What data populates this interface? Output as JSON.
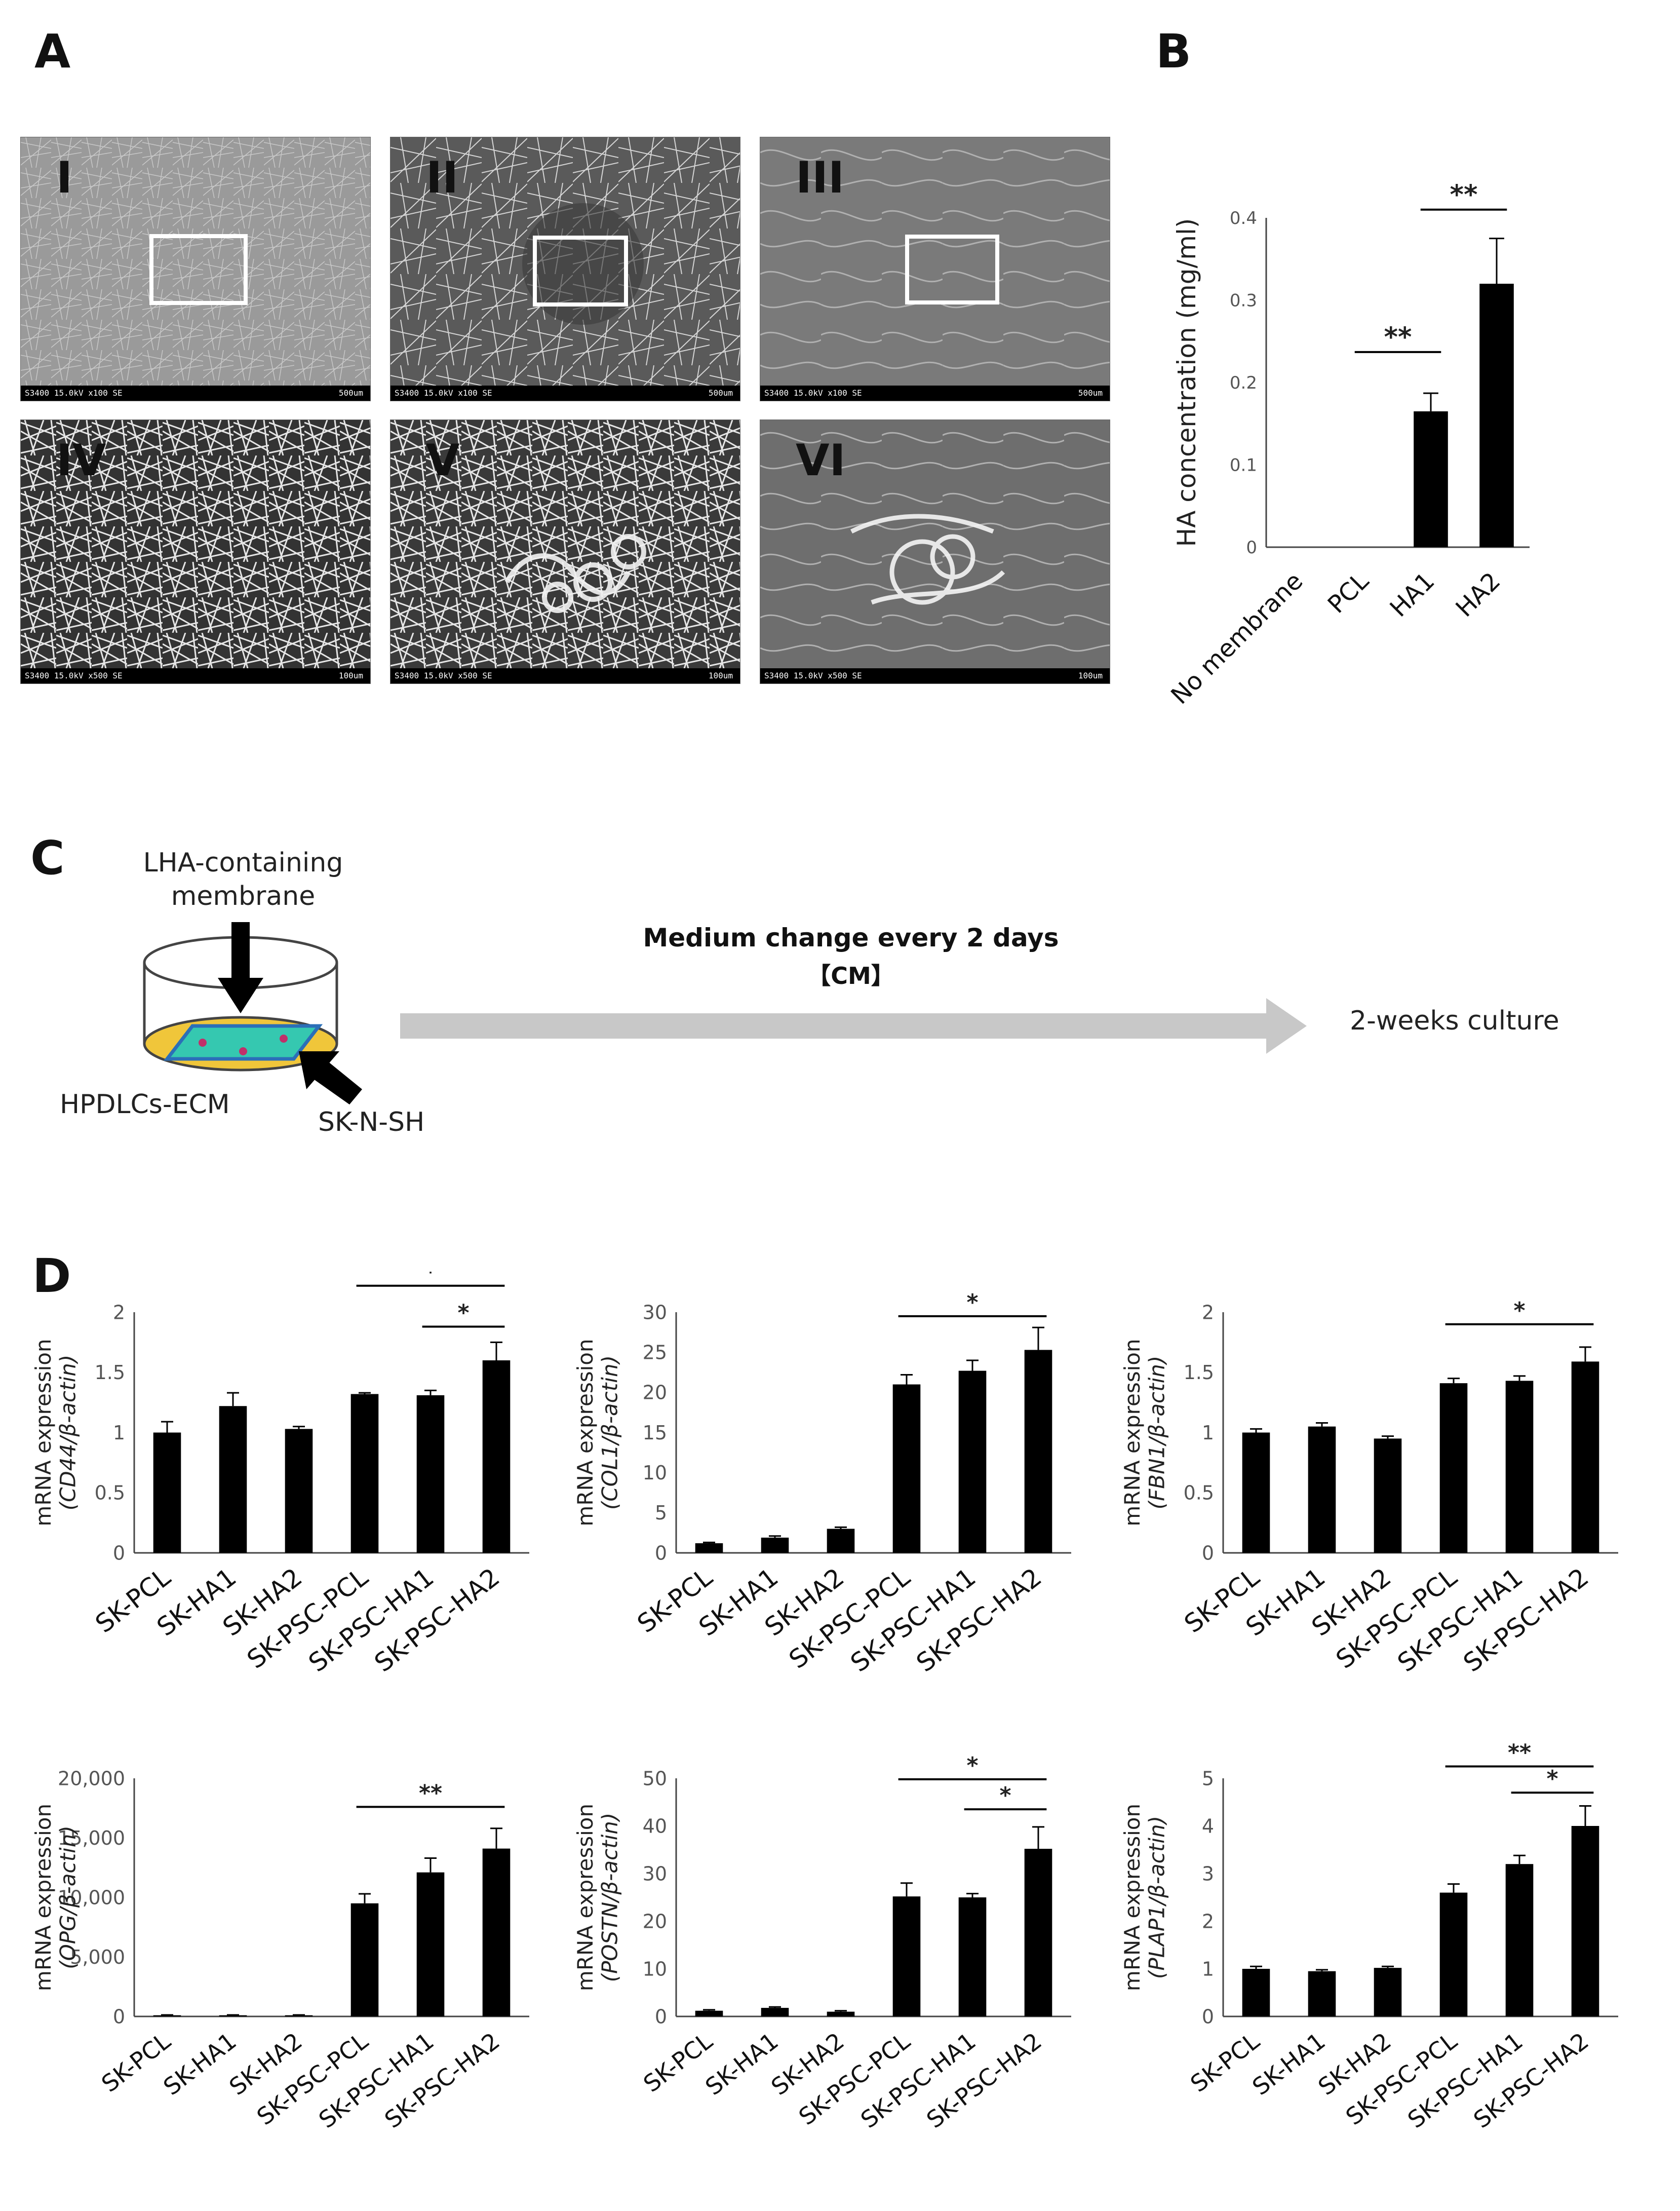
{
  "panels": {
    "A": {
      "letter": "A",
      "images": [
        {
          "label": "I",
          "scale_left": "S3400 15.0kV x100 SE",
          "scale_right": "500um"
        },
        {
          "label": "II",
          "scale_left": "S3400 15.0kV x100 SE",
          "scale_right": "500um"
        },
        {
          "label": "III",
          "scale_left": "S3400 15.0kV x100 SE",
          "scale_right": "500um"
        },
        {
          "label": "IV",
          "scale_left": "S3400 15.0kV x500 SE",
          "scale_right": "100um"
        },
        {
          "label": "V",
          "scale_left": "S3400 15.0kV x500 SE",
          "scale_right": "100um"
        },
        {
          "label": "VI",
          "scale_left": "S3400 15.0kV x500 SE",
          "scale_right": "100um"
        }
      ]
    },
    "B": {
      "letter": "B"
    },
    "C": {
      "letter": "C",
      "membrane_label_1": "LHA-containing",
      "membrane_label_2": "membrane",
      "ecm_label": "HPDLCs-ECM",
      "cell_label": "SK-N-SH",
      "medium_label": "Medium change every 2 days",
      "cm_label": "【CM】",
      "culture_label": "2-weeks culture",
      "colors": {
        "dish_fill": "#f0c63a",
        "membrane_fill": "#35c8b0",
        "membrane_edge": "#2b6fb8",
        "cell_dot": "#c0306a",
        "arrow": "#c8c8c8"
      }
    },
    "D": {
      "letter": "D"
    }
  },
  "chart_data": [
    {
      "id": "B",
      "type": "bar",
      "categories": [
        "No membrane",
        "PCL",
        "HA1",
        "HA2"
      ],
      "values": [
        0,
        0,
        0.165,
        0.32
      ],
      "errors": [
        0,
        0,
        0.022,
        0.055
      ],
      "ylabel": "HA concentration (mg/ml)",
      "ylabel_italic": "",
      "ylim": [
        0,
        0.4
      ],
      "yticks": [
        "0",
        "0.1",
        "0.2",
        "0.3",
        "0.4"
      ],
      "significance": [
        {
          "from": 1,
          "to": 2,
          "label": "**",
          "y": 0.237
        },
        {
          "from": 2,
          "to": 3,
          "label": "**",
          "y": 0.41
        }
      ]
    },
    {
      "id": "D1",
      "type": "bar",
      "categories": [
        "SK-PCL",
        "SK-HA1",
        "SK-HA2",
        "SK-PSC-PCL",
        "SK-PSC-HA1",
        "SK-PSC-HA2"
      ],
      "values": [
        1.0,
        1.22,
        1.03,
        1.32,
        1.31,
        1.6
      ],
      "errors": [
        0.09,
        0.11,
        0.02,
        0.01,
        0.04,
        0.15
      ],
      "ylabel": "mRNA expression",
      "ylabel_italic": "(CD44/β-actin)",
      "ylim": [
        0,
        2
      ],
      "yticks": [
        "0",
        "0.5",
        "1",
        "1.5",
        "2"
      ],
      "significance": [
        {
          "from": 3,
          "to": 5,
          "label": "*",
          "y": 2.22
        },
        {
          "from": 4,
          "to": 5,
          "label": "*",
          "y": 1.88
        }
      ]
    },
    {
      "id": "D2",
      "type": "bar",
      "categories": [
        "SK-PCL",
        "SK-HA1",
        "SK-HA2",
        "SK-PSC-PCL",
        "SK-PSC-HA1",
        "SK-PSC-HA2"
      ],
      "values": [
        1.2,
        1.9,
        3.0,
        21.0,
        22.7,
        25.3
      ],
      "errors": [
        0.1,
        0.2,
        0.2,
        1.2,
        1.3,
        2.8
      ],
      "ylabel": "mRNA expression",
      "ylabel_italic": "(COL1/β-actin)",
      "ylim": [
        0,
        30
      ],
      "yticks": [
        "0",
        "5",
        "10",
        "15",
        "20",
        "25",
        "30"
      ],
      "significance": [
        {
          "from": 3,
          "to": 5,
          "label": "*",
          "y": 29.5
        }
      ]
    },
    {
      "id": "D3",
      "type": "bar",
      "categories": [
        "SK-PCL",
        "SK-HA1",
        "SK-HA2",
        "SK-PSC-PCL",
        "SK-PSC-HA1",
        "SK-PSC-HA2"
      ],
      "values": [
        1.0,
        1.05,
        0.95,
        1.41,
        1.43,
        1.59
      ],
      "errors": [
        0.03,
        0.03,
        0.02,
        0.04,
        0.04,
        0.12
      ],
      "ylabel": "mRNA expression",
      "ylabel_italic": "(FBN1/β-actin)",
      "ylim": [
        0,
        2
      ],
      "yticks": [
        "0",
        "0.5",
        "1",
        "1.5",
        "2"
      ],
      "significance": [
        {
          "from": 3,
          "to": 5,
          "label": "*",
          "y": 1.9
        }
      ]
    },
    {
      "id": "D4",
      "type": "bar",
      "categories": [
        "SK-PCL",
        "SK-HA1",
        "SK-HA2",
        "SK-PSC-PCL",
        "SK-PSC-HA1",
        "SK-PSC-HA2"
      ],
      "values": [
        100,
        100,
        100,
        9500,
        12100,
        14100
      ],
      "errors": [
        30,
        30,
        30,
        800,
        1200,
        1700
      ],
      "ylabel": "mRNA expression",
      "ylabel_italic": "(OPG/β-actin)",
      "ylim": [
        0,
        20000
      ],
      "yticks": [
        "0",
        "5,000",
        "10,000",
        "15,000",
        "20,000"
      ],
      "significance": [
        {
          "from": 3,
          "to": 5,
          "label": "**",
          "y": 17600
        }
      ]
    },
    {
      "id": "D5",
      "type": "bar",
      "categories": [
        "SK-PCL",
        "SK-HA1",
        "SK-HA2",
        "SK-PSC-PCL",
        "SK-PSC-HA1",
        "SK-PSC-HA2"
      ],
      "values": [
        1.2,
        1.8,
        1.0,
        25.2,
        25.0,
        35.2
      ],
      "errors": [
        0.2,
        0.2,
        0.2,
        2.8,
        0.8,
        4.6
      ],
      "ylabel": "mRNA expression",
      "ylabel_italic": "(POSTN/β-actin)",
      "ylim": [
        0,
        50
      ],
      "yticks": [
        "0",
        "10",
        "20",
        "30",
        "40",
        "50"
      ],
      "significance": [
        {
          "from": 3,
          "to": 5,
          "label": "*",
          "y": 49.8
        },
        {
          "from": 4,
          "to": 5,
          "label": "*",
          "y": 43.5
        }
      ]
    },
    {
      "id": "D6",
      "type": "bar",
      "categories": [
        "SK-PCL",
        "SK-HA1",
        "SK-HA2",
        "SK-PSC-PCL",
        "SK-PSC-HA1",
        "SK-PSC-HA2"
      ],
      "values": [
        1.0,
        0.95,
        1.02,
        2.6,
        3.2,
        4.0
      ],
      "errors": [
        0.05,
        0.03,
        0.03,
        0.18,
        0.18,
        0.42
      ],
      "ylabel": "mRNA expression",
      "ylabel_italic": "(PLAP1/β-actin)",
      "ylim": [
        0,
        5
      ],
      "yticks": [
        "0",
        "1",
        "2",
        "3",
        "4",
        "5"
      ],
      "significance": [
        {
          "from": 3,
          "to": 5,
          "label": "**",
          "y": 5.25
        },
        {
          "from": 4,
          "to": 5,
          "label": "*",
          "y": 4.7
        }
      ]
    }
  ]
}
